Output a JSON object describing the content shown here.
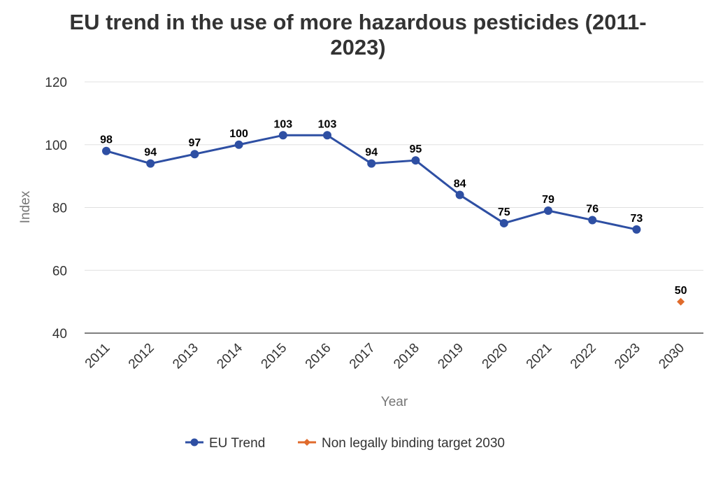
{
  "chart_data": {
    "type": "line",
    "title_line1": "EU trend in the use of more hazardous pesticides (2011-",
    "title_line2": "2023)",
    "xlabel": "Year",
    "ylabel": "Index",
    "categories": [
      "2011",
      "2012",
      "2013",
      "2014",
      "2015",
      "2016",
      "2017",
      "2018",
      "2019",
      "2020",
      "2021",
      "2022",
      "2023",
      "2030"
    ],
    "ylim": [
      40,
      120
    ],
    "yticks": [
      40,
      60,
      80,
      100,
      120
    ],
    "grid": "horizontal",
    "legend_position": "bottom",
    "series": [
      {
        "name": "EU Trend",
        "color": "#2E4FA3",
        "marker": "circle",
        "x": [
          "2011",
          "2012",
          "2013",
          "2014",
          "2015",
          "2016",
          "2017",
          "2018",
          "2019",
          "2020",
          "2021",
          "2022",
          "2023"
        ],
        "values": [
          98,
          94,
          97,
          100,
          103,
          103,
          94,
          95,
          84,
          75,
          79,
          76,
          73
        ],
        "labels": [
          "98",
          "94",
          "97",
          "100",
          "103",
          "103",
          "94",
          "95",
          "84",
          "75",
          "79",
          "76",
          "73"
        ]
      },
      {
        "name": "Non legally binding target 2030",
        "color": "#E06B2C",
        "marker": "diamond",
        "x": [
          "2030"
        ],
        "values": [
          50
        ],
        "labels": [
          "50"
        ]
      }
    ]
  }
}
